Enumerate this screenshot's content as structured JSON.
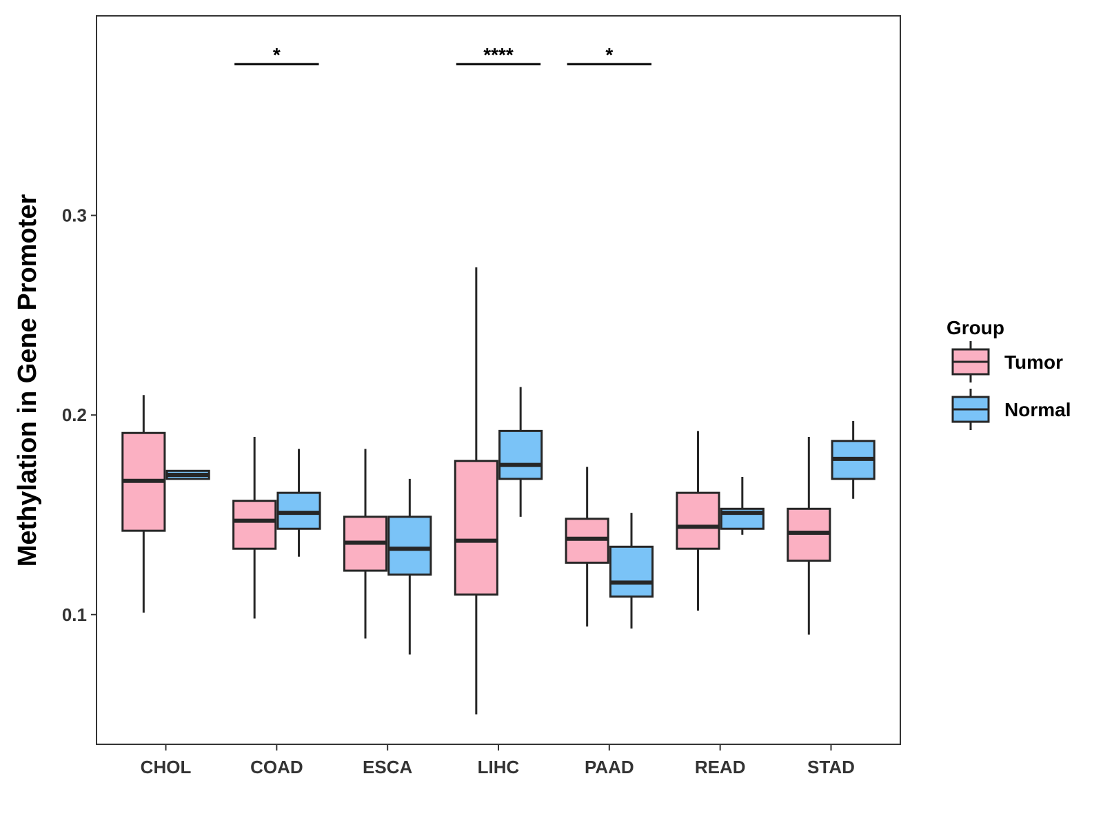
{
  "chart_data": {
    "type": "boxplot",
    "title": "",
    "xlabel": "",
    "ylabel": "Methylation in Gene Promoter",
    "ylim": [
      0.035,
      0.4
    ],
    "yticks": [
      0.1,
      0.2,
      0.3
    ],
    "ytick_labels": [
      "0.1",
      "0.2",
      "0.3"
    ],
    "categories": [
      "CHOL",
      "COAD",
      "ESCA",
      "LIHC",
      "PAAD",
      "READ",
      "STAD"
    ],
    "legend": {
      "title": "Group",
      "position": "right",
      "entries": [
        {
          "name": "Tumor",
          "color": "#FBB0C2"
        },
        {
          "name": "Normal",
          "color": "#7AC3F7"
        }
      ]
    },
    "series": [
      {
        "name": "Tumor",
        "color": "#FBB0C2",
        "boxes": [
          {
            "category": "CHOL",
            "min": 0.101,
            "q1": 0.142,
            "median": 0.167,
            "q3": 0.191,
            "max": 0.21
          },
          {
            "category": "COAD",
            "min": 0.098,
            "q1": 0.133,
            "median": 0.147,
            "q3": 0.157,
            "max": 0.189
          },
          {
            "category": "ESCA",
            "min": 0.088,
            "q1": 0.122,
            "median": 0.136,
            "q3": 0.149,
            "max": 0.183
          },
          {
            "category": "LIHC",
            "min": 0.05,
            "q1": 0.11,
            "median": 0.137,
            "q3": 0.177,
            "max": 0.274
          },
          {
            "category": "PAAD",
            "min": 0.094,
            "q1": 0.126,
            "median": 0.138,
            "q3": 0.148,
            "max": 0.174
          },
          {
            "category": "READ",
            "min": 0.102,
            "q1": 0.133,
            "median": 0.144,
            "q3": 0.161,
            "max": 0.192
          },
          {
            "category": "STAD",
            "min": 0.09,
            "q1": 0.127,
            "median": 0.141,
            "q3": 0.153,
            "max": 0.189
          }
        ]
      },
      {
        "name": "Normal",
        "color": "#7AC3F7",
        "boxes": [
          {
            "category": "CHOL",
            "min": 0.168,
            "q1": 0.168,
            "median": 0.17,
            "q3": 0.172,
            "max": 0.172
          },
          {
            "category": "COAD",
            "min": 0.129,
            "q1": 0.143,
            "median": 0.151,
            "q3": 0.161,
            "max": 0.183
          },
          {
            "category": "ESCA",
            "min": 0.08,
            "q1": 0.12,
            "median": 0.133,
            "q3": 0.149,
            "max": 0.168
          },
          {
            "category": "LIHC",
            "min": 0.149,
            "q1": 0.168,
            "median": 0.175,
            "q3": 0.192,
            "max": 0.214
          },
          {
            "category": "PAAD",
            "min": 0.093,
            "q1": 0.109,
            "median": 0.116,
            "q3": 0.134,
            "max": 0.151
          },
          {
            "category": "READ",
            "min": 0.14,
            "q1": 0.143,
            "median": 0.151,
            "q3": 0.153,
            "max": 0.169
          },
          {
            "category": "STAD",
            "min": 0.158,
            "q1": 0.168,
            "median": 0.178,
            "q3": 0.187,
            "max": 0.197
          }
        ]
      }
    ],
    "annotations": [
      {
        "category": "COAD",
        "label": "*"
      },
      {
        "category": "LIHC",
        "label": "****"
      },
      {
        "category": "PAAD",
        "label": "*"
      }
    ]
  }
}
